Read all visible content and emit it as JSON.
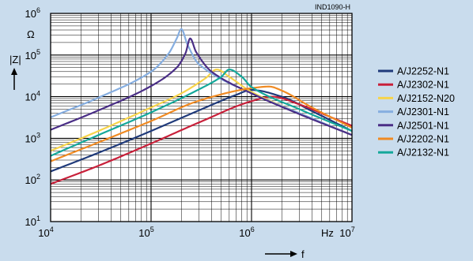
{
  "chart_data": {
    "type": "line",
    "figure_id": "IND1090-H",
    "x_scale": "log",
    "y_scale": "log",
    "xlim": [
      10000,
      10000000
    ],
    "ylim": [
      10,
      1000000
    ],
    "grid": true,
    "legend_position": "right",
    "ylabel": "|Z|",
    "y_unit": "Ω",
    "xlabel": "f",
    "x_unit": "Hz",
    "x_ticks": [
      {
        "base": "10",
        "exp": "4",
        "value": 10000
      },
      {
        "base": "10",
        "exp": "5",
        "value": 100000
      },
      {
        "base": "10",
        "exp": "6",
        "value": 1000000
      },
      {
        "base": "10",
        "exp": "7",
        "value": 10000000
      }
    ],
    "y_ticks": [
      {
        "base": "10",
        "exp": "1",
        "value": 10
      },
      {
        "base": "10",
        "exp": "2",
        "value": 100
      },
      {
        "base": "10",
        "exp": "3",
        "value": 1000
      },
      {
        "base": "10",
        "exp": "4",
        "value": 10000
      },
      {
        "base": "10",
        "exp": "5",
        "value": 100000
      },
      {
        "base": "10",
        "exp": "6",
        "value": 1000000
      }
    ],
    "series": [
      {
        "name": "A/J2252-N1",
        "color": "#1f3a7a",
        "x": [
          10000,
          30000,
          100000,
          300000,
          700000,
          1000000,
          2000000,
          4000000,
          10000000
        ],
        "y": [
          160,
          450,
          1500,
          4700,
          11000,
          14500,
          10000,
          4500,
          1500
        ]
      },
      {
        "name": "A/J2302-N1",
        "color": "#c8203a",
        "x": [
          10000,
          30000,
          100000,
          300000,
          1000000,
          1600000,
          3000000,
          6000000,
          10000000
        ],
        "y": [
          80,
          220,
          750,
          2400,
          7800,
          10000,
          6500,
          3300,
          2000
        ]
      },
      {
        "name": "A/J2152-N20",
        "color": "#f7d44a",
        "x": [
          10000,
          30000,
          100000,
          200000,
          350000,
          450000,
          600000,
          1000000,
          3000000,
          10000000
        ],
        "y": [
          500,
          1500,
          5500,
          12000,
          28000,
          45000,
          30000,
          13000,
          4000,
          1200
        ]
      },
      {
        "name": "A/J2301-N1",
        "color": "#86aee0",
        "x": [
          10000,
          30000,
          100000,
          150000,
          180000,
          200000,
          230000,
          300000,
          1000000,
          3000000,
          10000000
        ],
        "y": [
          3200,
          9500,
          40000,
          110000,
          250000,
          420000,
          180000,
          60000,
          12000,
          4000,
          1200
        ]
      },
      {
        "name": "A/J2501-N1",
        "color": "#4a2e86",
        "x": [
          10000,
          30000,
          100000,
          180000,
          220000,
          245000,
          280000,
          400000,
          1000000,
          3000000,
          10000000
        ],
        "y": [
          1600,
          4700,
          18000,
          50000,
          110000,
          250000,
          120000,
          40000,
          12000,
          3800,
          1200
        ]
      },
      {
        "name": "A/J2202-N1",
        "color": "#f08a22",
        "x": [
          10000,
          30000,
          100000,
          300000,
          1000000,
          1500000,
          2000000,
          4000000,
          10000000
        ],
        "y": [
          280,
          800,
          2600,
          8000,
          16000,
          17500,
          14000,
          5500,
          1800
        ]
      },
      {
        "name": "A/J2132-N1",
        "color": "#14a89a",
        "x": [
          10000,
          30000,
          100000,
          300000,
          500000,
          600000,
          800000,
          1000000,
          3000000,
          10000000
        ],
        "y": [
          380,
          1200,
          4200,
          15000,
          30000,
          45000,
          30000,
          17000,
          5000,
          1500
        ]
      }
    ]
  }
}
